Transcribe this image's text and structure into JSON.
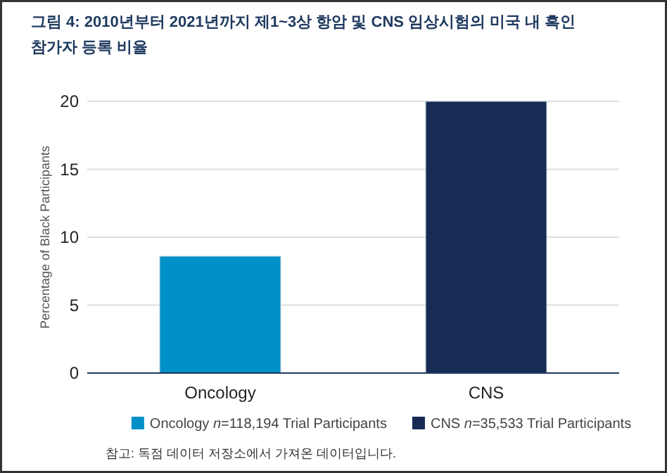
{
  "chart_data": {
    "type": "bar",
    "title": "그림 4: 2010년부터 2021년까지 제1~3상 항암 및 CNS 임상시험의 미국 내 흑인 참가자 등록 비율",
    "categories": [
      "Oncology",
      "CNS"
    ],
    "ylabel": "Percentage of Black Participants",
    "ylim": [
      0,
      20
    ],
    "yticks": [
      0,
      5,
      10,
      15,
      20
    ],
    "grid": "y",
    "legend": "bottom",
    "series": [
      {
        "name": "Oncology *n*=118,194 Trial Participants",
        "color": "#0090c8",
        "values": [
          8.6,
          null
        ]
      },
      {
        "name": "CNS *n*=35,533 Trial Participants",
        "color": "#172b54",
        "values": [
          null,
          20
        ]
      }
    ],
    "annotations": [
      "참고: 독점 데이터 저장소에서 가져온 데이터입니다."
    ]
  }
}
